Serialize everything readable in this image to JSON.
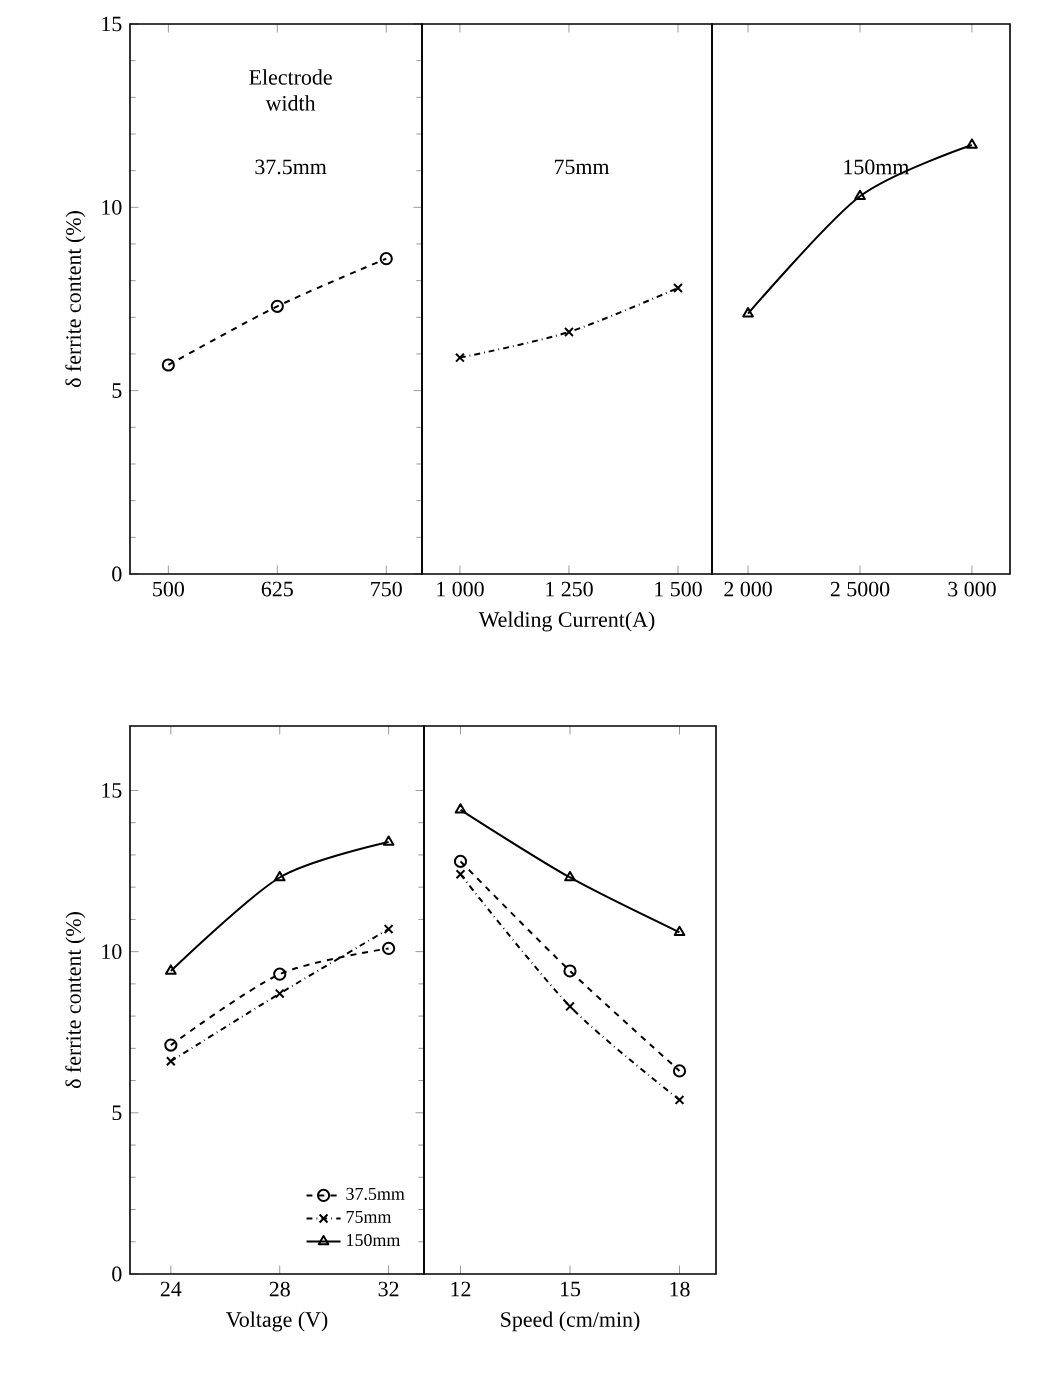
{
  "chart_data": [
    {
      "type": "line",
      "x": [
        500,
        625,
        750
      ],
      "xlim": [
        456,
        791
      ],
      "xticks": [
        500,
        625,
        750
      ],
      "ylim": [
        0,
        15
      ],
      "yticks": [
        0,
        5,
        10,
        15
      ],
      "ylabel": "δ ferrite content (%)",
      "annotations": [
        "Electrode width"
      ],
      "series": [
        {
          "name": "37.5mm",
          "color": "#000000",
          "marker": "circle",
          "line_style": "dashed",
          "values": [
            5.7,
            7.3,
            8.6
          ]
        }
      ]
    },
    {
      "type": "line",
      "x": [
        1000,
        1250,
        1500
      ],
      "xlim": [
        913,
        1578
      ],
      "xticks": [
        {
          "value": 1000,
          "label": "1 000"
        },
        {
          "value": 1250,
          "label": "1 250"
        },
        {
          "value": 1500,
          "label": "1 500"
        }
      ],
      "ylim": [
        0,
        15
      ],
      "tick_labels": "x",
      "xlabel": "Welding Current(A)",
      "series": [
        {
          "name": "75mm",
          "color": "#000000",
          "marker": "cross",
          "line_style": "dashdot",
          "values": [
            5.9,
            6.6,
            7.8
          ]
        }
      ]
    },
    {
      "type": "line",
      "x": [
        2000,
        2500,
        3000
      ],
      "xlim": [
        1839,
        3170
      ],
      "xticks": [
        {
          "value": 2000,
          "label": "2 000"
        },
        {
          "value": 2500,
          "label": "2 5000"
        },
        {
          "value": 3000,
          "label": "3 000"
        }
      ],
      "ylim": [
        0,
        15
      ],
      "tick_labels": "x",
      "series": [
        {
          "name": "150mm",
          "color": "#000000",
          "marker": "triangle",
          "line_style": "solid",
          "values": [
            7.1,
            10.3,
            11.7
          ]
        }
      ]
    },
    {
      "type": "line",
      "x": [
        24,
        28,
        32
      ],
      "xlim": [
        22.5,
        33.3
      ],
      "xticks": [
        24,
        28,
        32
      ],
      "ylim": [
        0,
        17
      ],
      "yticks": [
        0,
        5,
        10,
        15
      ],
      "xlabel": "Voltage (V)",
      "ylabel": "δ ferrite content (%)",
      "legend": "bottom right",
      "series": [
        {
          "name": "37.5mm",
          "color": "#000000",
          "marker": "circle",
          "line_style": "dashed",
          "values": [
            7.1,
            9.3,
            10.1
          ]
        },
        {
          "name": "75mm",
          "color": "#000000",
          "marker": "cross",
          "line_style": "dashdot",
          "values": [
            6.6,
            8.7,
            10.7
          ]
        },
        {
          "name": "150mm",
          "color": "#000000",
          "marker": "triangle",
          "line_style": "solid",
          "values": [
            9.4,
            12.3,
            13.4
          ]
        }
      ]
    },
    {
      "type": "line",
      "x": [
        12,
        15,
        18
      ],
      "xlim": [
        11,
        19
      ],
      "xticks": [
        12,
        15,
        18
      ],
      "ylim": [
        0,
        17
      ],
      "tick_labels": "x",
      "xlabel": "Speed (cm/min)",
      "series": [
        {
          "color": "#000000",
          "marker": "circle",
          "line_style": "dashed",
          "values": [
            12.8,
            9.4,
            6.3
          ]
        },
        {
          "color": "#000000",
          "marker": "cross",
          "line_style": "dashdot",
          "values": [
            12.4,
            8.3,
            5.4
          ]
        },
        {
          "color": "#000000",
          "marker": "triangle",
          "line_style": "solid",
          "values": [
            14.4,
            12.3,
            10.6
          ]
        }
      ]
    }
  ]
}
